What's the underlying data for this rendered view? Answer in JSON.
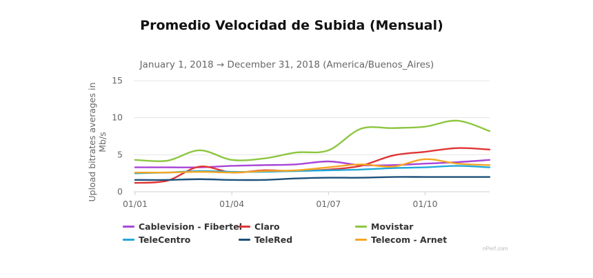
{
  "page": {
    "title": "Promedio Velocidad de Subida (Mensual)"
  },
  "chart_data": {
    "type": "line",
    "subtitle": "January 1, 2018 → December 31, 2018 (America/Buenos_Aires)",
    "ylabel": "Upload bitrates averages in Mb/s",
    "ylabel_lines": [
      "Upload bitrates averages in",
      "Mb/s"
    ],
    "ylim": [
      0,
      15
    ],
    "yticks": [
      0,
      5,
      10,
      15
    ],
    "xlabels": [
      "01/01",
      "01/04",
      "01/07",
      "01/10"
    ],
    "xlabel_months": [
      1,
      4,
      7,
      10
    ],
    "x_months": [
      1,
      2,
      3,
      4,
      5,
      6,
      7,
      8,
      9,
      10,
      11,
      12
    ],
    "grid": true,
    "legend_position": "bottom",
    "credit": "nPerf.com",
    "series": [
      {
        "name": "Cablevision - Fibertel",
        "color": "#a845d6",
        "values": [
          3.3,
          3.3,
          3.3,
          3.5,
          3.6,
          3.7,
          4.1,
          3.6,
          3.6,
          3.8,
          4.0,
          4.3
        ]
      },
      {
        "name": "Claro",
        "color": "#e03434",
        "values": [
          1.2,
          1.5,
          3.4,
          2.6,
          2.9,
          2.8,
          3.0,
          3.5,
          4.9,
          5.4,
          5.9,
          5.7
        ]
      },
      {
        "name": "Movistar",
        "color": "#8cc63f",
        "values": [
          4.3,
          4.2,
          5.6,
          4.3,
          4.5,
          5.3,
          5.6,
          8.5,
          8.6,
          8.8,
          9.6,
          8.2
        ]
      },
      {
        "name": "TeleCentro",
        "color": "#21a8d8",
        "values": [
          2.5,
          2.6,
          2.8,
          2.7,
          2.7,
          2.8,
          2.9,
          3.0,
          3.2,
          3.3,
          3.5,
          3.3
        ]
      },
      {
        "name": "TeleRed",
        "color": "#1c4f7a",
        "values": [
          1.6,
          1.6,
          1.7,
          1.6,
          1.6,
          1.8,
          1.9,
          1.9,
          2.0,
          2.0,
          2.0,
          2.0
        ]
      },
      {
        "name": "Telecom - Arnet",
        "color": "#f5a623",
        "values": [
          2.6,
          2.6,
          2.7,
          2.6,
          2.8,
          2.9,
          3.3,
          3.7,
          3.4,
          4.4,
          3.8,
          3.6
        ]
      }
    ]
  }
}
